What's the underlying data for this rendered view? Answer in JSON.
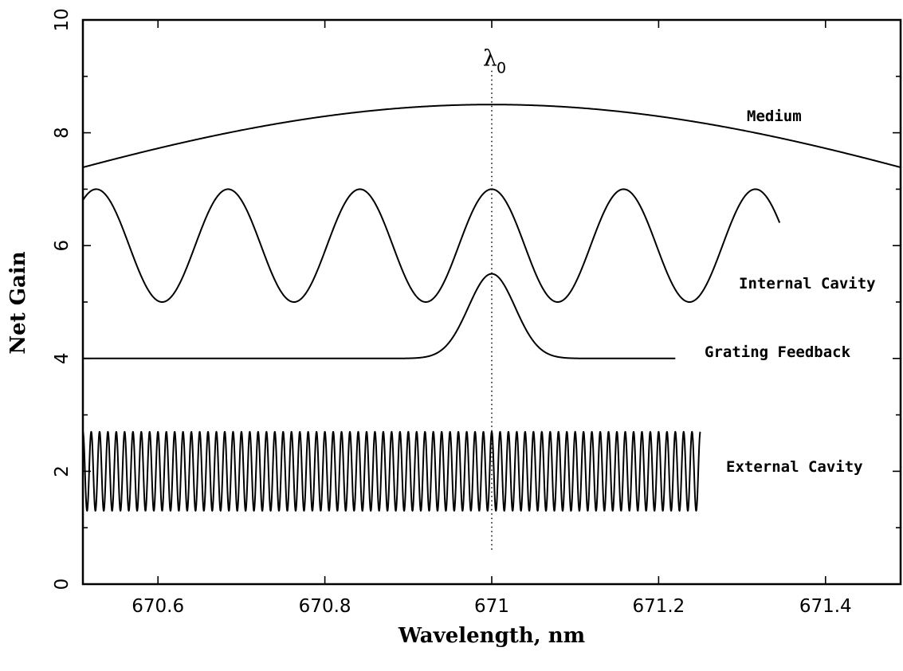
{
  "chart_data": {
    "type": "line",
    "title": "",
    "xlabel": "Wavelength, nm",
    "ylabel": "Net Gain",
    "xlim": [
      670.51,
      671.49
    ],
    "ylim": [
      0,
      10
    ],
    "x_ticks": [
      670.6,
      670.8,
      671,
      671.2,
      671.4
    ],
    "x_tick_labels": [
      "670.6",
      "670.8",
      "671",
      "671.2",
      "671.4"
    ],
    "y_ticks": [
      0,
      2,
      4,
      6,
      8,
      10
    ],
    "y_tick_labels": [
      "0",
      "2",
      "4",
      "6",
      "8",
      "10"
    ],
    "grid": false,
    "reference_line": {
      "x": 671,
      "label": "λ",
      "label_subscript": "0",
      "y_range": [
        0.6,
        9.1
      ],
      "style": "dotted"
    },
    "series": [
      {
        "name": "Medium",
        "shape": "gaussian",
        "x_range": [
          670.51,
          671.49
        ],
        "peak": 8.5,
        "center": 671,
        "base": 4.0,
        "width_sigma": 0.65
      },
      {
        "name": "Internal Cavity",
        "shape": "cosine",
        "x_range": [
          670.51,
          671.345
        ],
        "center": 6.0,
        "amplitude": 1.0,
        "period": 0.158,
        "phase_x": 671
      },
      {
        "name": "Grating Feedback",
        "shape": "gaussian",
        "x_range": [
          670.51,
          671.22
        ],
        "base": 4.0,
        "peak": 5.5,
        "center": 671,
        "width_sigma": 0.028
      },
      {
        "name": "External Cavity",
        "shape": "cosine",
        "x_range": [
          670.51,
          671.25
        ],
        "center": 2.0,
        "amplitude": 0.7,
        "period": 0.01,
        "phase_x": 671
      }
    ]
  }
}
